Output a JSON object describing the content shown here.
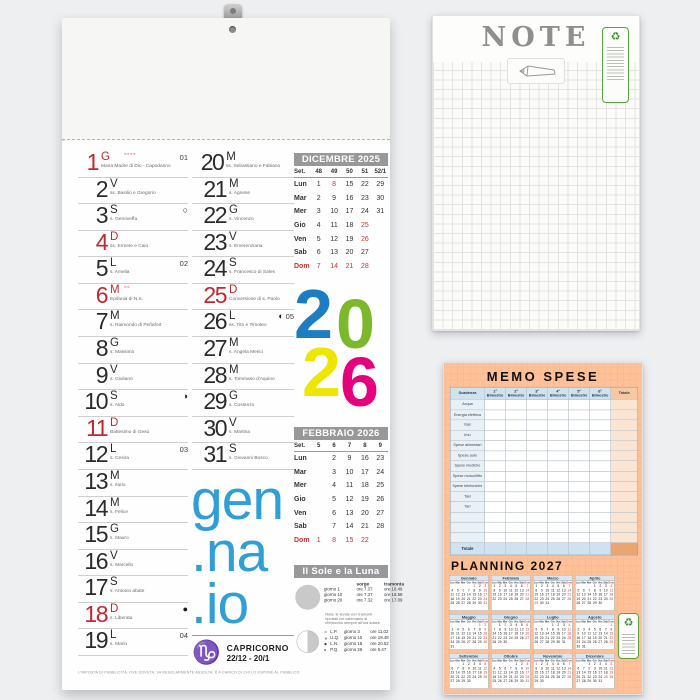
{
  "page": {
    "background": "#edeff1"
  },
  "calendar": {
    "hole_icon": "hanging-hole-icon",
    "hanger_icon": "metal-hanger-icon",
    "month_syllables": [
      "gen",
      ".na",
      ".io"
    ],
    "year_digits": [
      {
        "d": "2",
        "color": "#1d7dc2"
      },
      {
        "d": "0",
        "color": "#7db82a"
      },
      {
        "d": "2",
        "color": "#efe600"
      },
      {
        "d": "6",
        "color": "#e5007d"
      }
    ],
    "days_col1": [
      {
        "n": "1",
        "w": "G",
        "saint": "Maria Madre di Dio - Capodanno",
        "red": true,
        "week": "01",
        "orn": "◦◦◦◦"
      },
      {
        "n": "2",
        "w": "V",
        "saint": "ss. Basilio e Gregorio",
        "red": false
      },
      {
        "n": "3",
        "w": "S",
        "saint": "s. Genoveffa",
        "red": false,
        "moon": "○"
      },
      {
        "n": "4",
        "w": "D",
        "saint": "ss. Ermete e Caio",
        "red": true
      },
      {
        "n": "5",
        "w": "L",
        "saint": "s. Amelia",
        "red": false,
        "week": "02"
      },
      {
        "n": "6",
        "w": "M",
        "saint": "Epifania di N.S.",
        "red": true,
        "orn": "◦◦"
      },
      {
        "n": "7",
        "w": "M",
        "saint": "s. Raimondo di Peñafort",
        "red": false
      },
      {
        "n": "8",
        "w": "G",
        "saint": "s. Massimo",
        "red": false
      },
      {
        "n": "9",
        "w": "V",
        "saint": "s. Giuliano",
        "red": false
      },
      {
        "n": "10",
        "w": "S",
        "saint": "s. Aldo",
        "red": false,
        "moon": "◑"
      },
      {
        "n": "11",
        "w": "D",
        "saint": "Battesimo di Gesù",
        "red": true
      },
      {
        "n": "12",
        "w": "L",
        "saint": "s. Cesira",
        "red": false,
        "week": "03"
      },
      {
        "n": "13",
        "w": "M",
        "saint": "s. Ilario",
        "red": false
      },
      {
        "n": "14",
        "w": "M",
        "saint": "s. Felice",
        "red": false
      },
      {
        "n": "15",
        "w": "G",
        "saint": "s. Mauro",
        "red": false
      },
      {
        "n": "16",
        "w": "V",
        "saint": "s. Marcello",
        "red": false
      },
      {
        "n": "17",
        "w": "S",
        "saint": "s. Antonio abate",
        "red": false
      },
      {
        "n": "18",
        "w": "D",
        "saint": "s. Liberata",
        "red": true,
        "moon": "●"
      },
      {
        "n": "19",
        "w": "L",
        "saint": "s. Mario",
        "red": false,
        "week": "04"
      }
    ],
    "days_col2": [
      {
        "n": "20",
        "w": "M",
        "saint": "ss. Sebastiano e Fabiano",
        "red": false
      },
      {
        "n": "21",
        "w": "M",
        "saint": "s. Agnese",
        "red": false
      },
      {
        "n": "22",
        "w": "G",
        "saint": "s. Vincenzo",
        "red": false
      },
      {
        "n": "23",
        "w": "V",
        "saint": "s. Emerenziana",
        "red": false
      },
      {
        "n": "24",
        "w": "S",
        "saint": "s. Francesco di Sales",
        "red": false
      },
      {
        "n": "25",
        "w": "D",
        "saint": "Conversione di s. Paolo",
        "red": true
      },
      {
        "n": "26",
        "w": "L",
        "saint": "ss. Tito e Timoteo",
        "red": false,
        "moon": "◐",
        "week": "05"
      },
      {
        "n": "27",
        "w": "M",
        "saint": "s. Angela Merici",
        "red": false
      },
      {
        "n": "28",
        "w": "M",
        "saint": "s. Tommaso d'Aquino",
        "red": false
      },
      {
        "n": "29",
        "w": "G",
        "saint": "s. Costanzo",
        "red": false
      },
      {
        "n": "30",
        "w": "V",
        "saint": "s. Martina",
        "red": false
      },
      {
        "n": "31",
        "w": "S",
        "saint": "s. Giovanni Bosco",
        "red": false
      }
    ],
    "month_tables": [
      {
        "title": "DICEMBRE 2025",
        "week_header": [
          "Set.",
          "48",
          "49",
          "50",
          "51",
          "52/1"
        ],
        "rows": [
          {
            "label": "Lun",
            "cells": [
              "1",
              "8",
              "15",
              "22",
              "29"
            ],
            "red": [
              1
            ]
          },
          {
            "label": "Mar",
            "cells": [
              "2",
              "9",
              "16",
              "23",
              "30"
            ],
            "red": []
          },
          {
            "label": "Mer",
            "cells": [
              "3",
              "10",
              "17",
              "24",
              "31"
            ],
            "red": []
          },
          {
            "label": "Gio",
            "cells": [
              "4",
              "11",
              "18",
              "25",
              ""
            ],
            "red": [
              3
            ]
          },
          {
            "label": "Ven",
            "cells": [
              "5",
              "12",
              "19",
              "26",
              ""
            ],
            "red": [
              3
            ]
          },
          {
            "label": "Sab",
            "cells": [
              "6",
              "13",
              "20",
              "27",
              ""
            ],
            "red": []
          },
          {
            "label": "Dom",
            "cells": [
              "7",
              "14",
              "21",
              "28",
              ""
            ],
            "red": [
              0,
              1,
              2,
              3
            ],
            "label_red": true
          }
        ]
      },
      {
        "title": "FEBBRAIO 2026",
        "week_header": [
          "Set.",
          "5",
          "6",
          "7",
          "8",
          "9"
        ],
        "rows": [
          {
            "label": "Lun",
            "cells": [
              "",
              "2",
              "9",
              "16",
              "23"
            ],
            "red": []
          },
          {
            "label": "Mar",
            "cells": [
              "",
              "3",
              "10",
              "17",
              "24"
            ],
            "red": []
          },
          {
            "label": "Mer",
            "cells": [
              "",
              "4",
              "11",
              "18",
              "25"
            ],
            "red": []
          },
          {
            "label": "Gio",
            "cells": [
              "",
              "5",
              "12",
              "19",
              "26"
            ],
            "red": []
          },
          {
            "label": "Ven",
            "cells": [
              "",
              "6",
              "13",
              "20",
              "27"
            ],
            "red": []
          },
          {
            "label": "Sab",
            "cells": [
              "",
              "7",
              "14",
              "21",
              "28"
            ],
            "red": []
          },
          {
            "label": "Dom",
            "cells": [
              "1",
              "8",
              "15",
              "22",
              ""
            ],
            "red": [
              0,
              1,
              2,
              3
            ],
            "label_red": true
          }
        ]
      }
    ],
    "sun_moon": {
      "title": "Il Sole e la Luna",
      "sun_icon": "sun-disc-icon",
      "moon_icon": "moon-half-icon",
      "giorno_label": "giorno",
      "ore_label": "ore",
      "col_sorge": "sorge",
      "col_tramonta": "tramonta",
      "sun_rows": [
        {
          "g": "1",
          "sorge": "7.37",
          "tramonta": "16.49"
        },
        {
          "g": "10",
          "sorge": "7.37",
          "tramonta": "16.58"
        },
        {
          "g": "20",
          "sorge": "7.32",
          "tramonta": "17.09"
        }
      ],
      "note": "Nota: le levate ed i tramonti riportati nel calendario si riferiscono sempre all'ora solare.",
      "phases": [
        {
          "sym": "○",
          "abbr": "L.P.",
          "g": "3",
          "ore": "11.02"
        },
        {
          "sym": "◑",
          "abbr": "U.Q.",
          "g": "10",
          "ore": "18.48"
        },
        {
          "sym": "●",
          "abbr": "L.N.",
          "g": "18",
          "ore": "20.52"
        },
        {
          "sym": "◐",
          "abbr": "P.Q.",
          "g": "26",
          "ore": "5.47"
        }
      ]
    },
    "zodiac": {
      "icon": "capricorn-icon",
      "glyph": "♑",
      "name": "CAPRICORNO",
      "range": "22/12 - 20/1"
    },
    "fineprint": "L'IMPOSTA DI PUBBLICITÀ, OVE DOVUTA, VA REGOLARMENTE ASSOLTA. È A CARICO DI CHI LO ESPONE AL PUBBLICO"
  },
  "note_pad": {
    "title": "NOTE",
    "pencil_icon": "pencil-icon",
    "eco_icon": "eco-certification-label"
  },
  "memo": {
    "title": "MEMO SPESE",
    "header": [
      "Scadenza",
      "1° Bimestre",
      "2° Bimestre",
      "3° Bimestre",
      "4° Bimestre",
      "5° Bimestre",
      "6° Bimestre",
      "Totale"
    ],
    "row_labels": [
      "Acqua",
      "Energia elettrica",
      "Gas",
      "Imu",
      "Spese alimentari",
      "Spese auto",
      "Spese mediche",
      "Spese mutuo/fitto",
      "Spese telefoniche",
      "Tasi",
      "Tari",
      "",
      "",
      ""
    ],
    "total_label": "Totale",
    "planning": {
      "title": "PLANNING 2027",
      "weekdays": [
        "Lun",
        "Mar",
        "Mer",
        "Gio",
        "Ven",
        "Sab",
        "Dom"
      ],
      "months": [
        {
          "name": "Gennaio",
          "start": 4,
          "days": 31,
          "extra_red": [
            1,
            6
          ]
        },
        {
          "name": "Febbraio",
          "start": 0,
          "days": 28,
          "extra_red": []
        },
        {
          "name": "Marzo",
          "start": 0,
          "days": 31,
          "extra_red": [
            29
          ]
        },
        {
          "name": "Aprile",
          "start": 3,
          "days": 30,
          "extra_red": []
        },
        {
          "name": "Maggio",
          "start": 5,
          "days": 31,
          "extra_red": [
            1
          ]
        },
        {
          "name": "Giugno",
          "start": 1,
          "days": 30,
          "extra_red": [
            2
          ]
        },
        {
          "name": "Luglio",
          "start": 3,
          "days": 31,
          "extra_red": []
        },
        {
          "name": "Agosto",
          "start": 6,
          "days": 31,
          "extra_red": []
        },
        {
          "name": "Settembre",
          "start": 2,
          "days": 30,
          "extra_red": []
        },
        {
          "name": "Ottobre",
          "start": 4,
          "days": 31,
          "extra_red": []
        },
        {
          "name": "Novembre",
          "start": 0,
          "days": 30,
          "extra_red": [
            1
          ]
        },
        {
          "name": "Dicembre",
          "start": 2,
          "days": 31,
          "extra_red": [
            8,
            25,
            26
          ]
        }
      ]
    },
    "eco_icon": "eco-certification-label"
  }
}
